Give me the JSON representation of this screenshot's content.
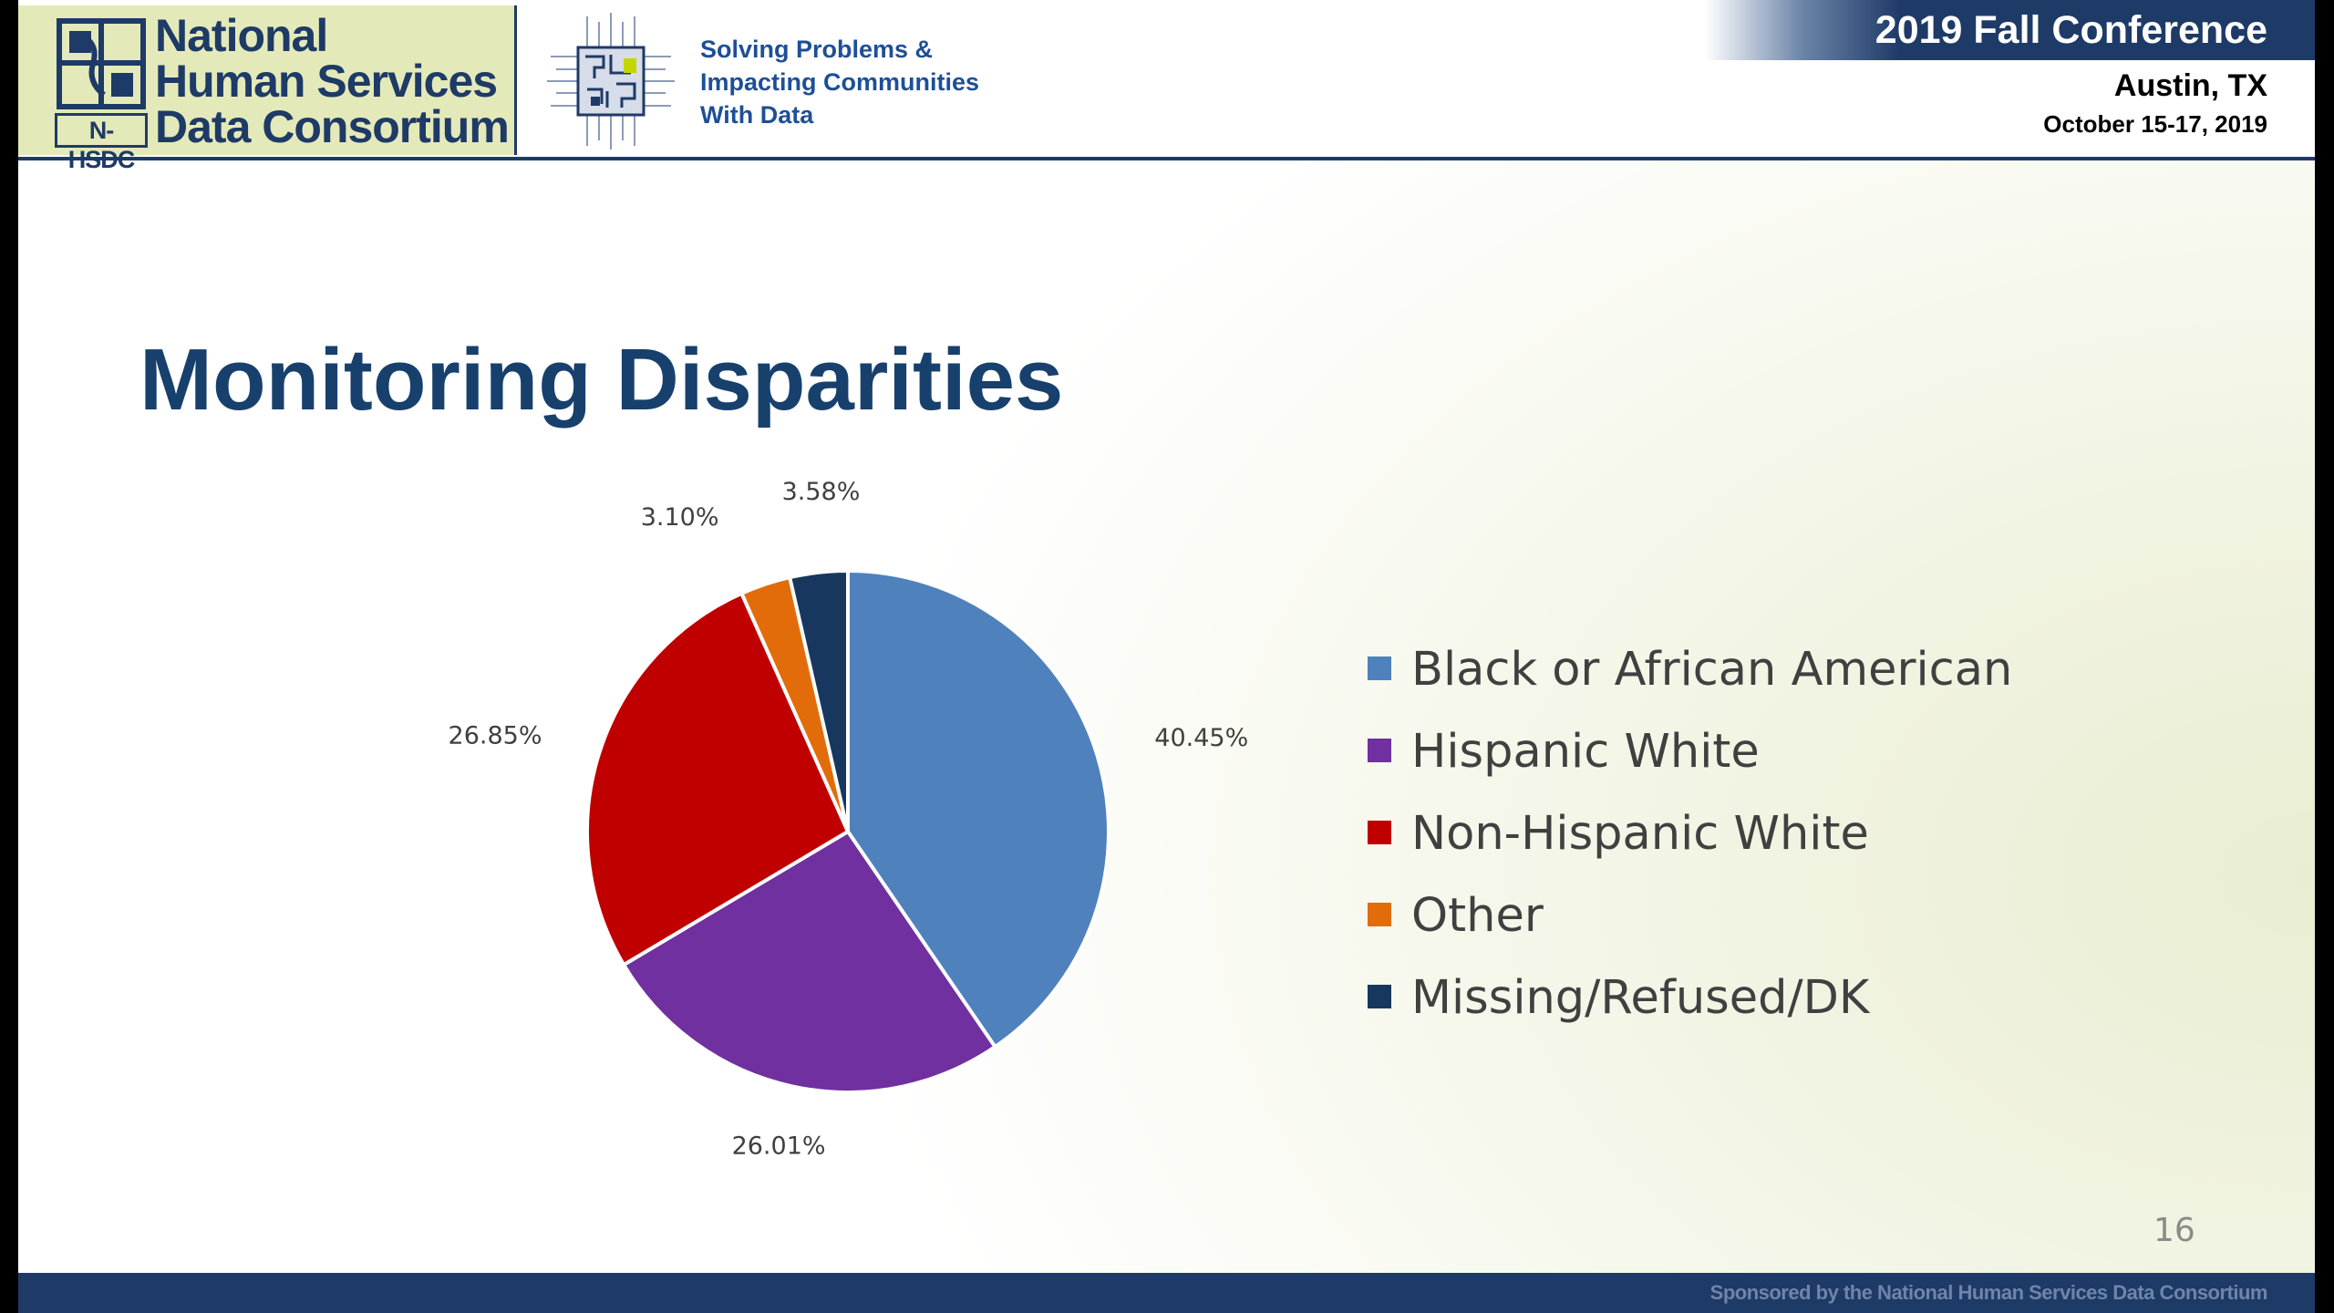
{
  "header": {
    "org_name_lines": [
      "National",
      "Human Services",
      "Data Consortium"
    ],
    "org_acronym": "N-HSDC",
    "tagline_lines": [
      "Solving Problems &",
      "Impacting Communities",
      "With Data"
    ],
    "conference_title": "2019 Fall Conference",
    "conference_city": "Austin, TX",
    "conference_dates": "October 15-17, 2019"
  },
  "slide": {
    "title": "Monitoring Disparities",
    "page_number": "16"
  },
  "footer": {
    "sponsor_text": "Sponsored by the National Human Services Data Consortium"
  },
  "colors": {
    "brand_navy": "#1e3a67",
    "title_blue": "#17406d",
    "logo_background": "#e4e9b9"
  },
  "chart_data": {
    "type": "pie",
    "title": "",
    "categories": [
      "Black or African American",
      "Hispanic White",
      "Non-Hispanic White",
      "Other",
      "Missing/Refused/DK"
    ],
    "values": [
      40.45,
      26.01,
      26.85,
      3.1,
      3.58
    ],
    "value_labels": [
      "40.45%",
      "26.01%",
      "26.85%",
      "3.10%",
      "3.58%"
    ],
    "colors": [
      "#4f81bd",
      "#7030a0",
      "#c00000",
      "#e36c0a",
      "#17375e"
    ],
    "unit": "%",
    "legend_position": "right"
  }
}
